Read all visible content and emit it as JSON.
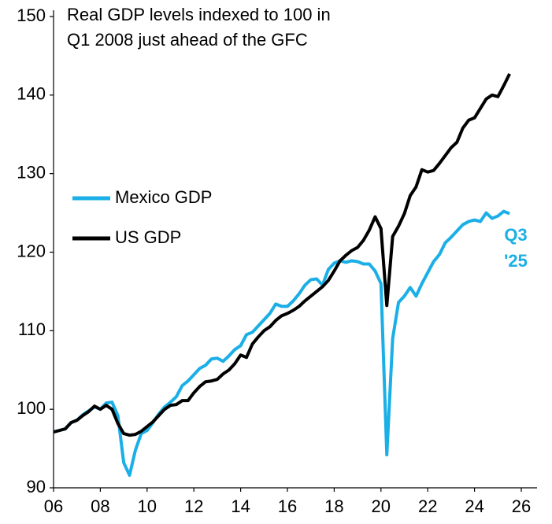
{
  "chart_data": {
    "type": "line",
    "title": [
      "Real GDP levels indexed to 100 in",
      "Q1 2008 just ahead of the GFC"
    ],
    "annotation": {
      "text": [
        "Q3",
        "'25"
      ],
      "color": "#1aafe6"
    },
    "x": [
      2006,
      2006.25,
      2006.5,
      2006.75,
      2007,
      2007.25,
      2007.5,
      2007.75,
      2008,
      2008.25,
      2008.5,
      2008.75,
      2009,
      2009.25,
      2009.5,
      2009.75,
      2010,
      2010.25,
      2010.5,
      2010.75,
      2011,
      2011.25,
      2011.5,
      2011.75,
      2012,
      2012.25,
      2012.5,
      2012.75,
      2013,
      2013.25,
      2013.5,
      2013.75,
      2014,
      2014.25,
      2014.5,
      2014.75,
      2015,
      2015.25,
      2015.5,
      2015.75,
      2016,
      2016.25,
      2016.5,
      2016.75,
      2017,
      2017.25,
      2017.5,
      2017.75,
      2018,
      2018.25,
      2018.5,
      2018.75,
      2019,
      2019.25,
      2019.5,
      2019.75,
      2020,
      2020.25,
      2020.5,
      2020.75,
      2021,
      2021.25,
      2021.5,
      2021.75,
      2022,
      2022.25,
      2022.5,
      2022.75,
      2023,
      2023.25,
      2023.5,
      2023.75,
      2024,
      2024.25,
      2024.5,
      2024.75,
      2025,
      2025.25,
      2025.5
    ],
    "series": [
      {
        "name": "Mexico GDP",
        "color": "#1aafe6",
        "values": [
          97.1,
          97.3,
          97.5,
          98.3,
          98.6,
          99.3,
          99.8,
          100.3,
          100.0,
          100.8,
          100.9,
          99.2,
          93.2,
          91.6,
          94.8,
          96.9,
          97.3,
          98.3,
          99.4,
          100.3,
          100.9,
          101.6,
          103.0,
          103.6,
          104.4,
          105.2,
          105.6,
          106.4,
          106.5,
          106.1,
          106.8,
          107.6,
          108.1,
          109.5,
          109.8,
          110.6,
          111.4,
          112.2,
          113.4,
          113.1,
          113.1,
          113.8,
          114.7,
          115.8,
          116.5,
          116.6,
          115.8,
          117.8,
          118.6,
          118.9,
          118.7,
          118.9,
          118.8,
          118.5,
          118.5,
          117.6,
          116.0,
          94.2,
          109.0,
          113.6,
          114.4,
          115.5,
          114.4,
          116.0,
          117.4,
          118.8,
          119.7,
          121.2,
          121.9,
          122.7,
          123.5,
          123.9,
          124.1,
          123.9,
          125.0,
          124.3,
          124.6,
          125.2,
          124.9
        ]
      },
      {
        "name": "US GDP",
        "color": "#000000",
        "values": [
          97.1,
          97.3,
          97.5,
          98.3,
          98.6,
          99.2,
          99.7,
          100.4,
          100.0,
          100.5,
          100.0,
          98.2,
          96.9,
          96.7,
          96.8,
          97.2,
          97.8,
          98.4,
          99.2,
          100.0,
          100.5,
          100.6,
          101.1,
          101.1,
          102.1,
          102.9,
          103.5,
          103.6,
          103.8,
          104.5,
          105.0,
          105.8,
          106.9,
          106.6,
          108.3,
          109.2,
          110.0,
          110.5,
          111.3,
          111.9,
          112.2,
          112.6,
          113.1,
          113.8,
          114.4,
          115.0,
          115.6,
          116.4,
          117.6,
          118.9,
          119.6,
          120.2,
          120.6,
          121.5,
          122.8,
          124.5,
          123.0,
          113.2,
          122.0,
          123.3,
          124.9,
          127.2,
          128.3,
          130.5,
          130.2,
          130.4,
          131.3,
          132.3,
          133.3,
          134.0,
          135.8,
          136.8,
          137.1,
          138.3,
          139.5,
          140.0,
          139.8,
          141.2,
          142.7
        ]
      }
    ],
    "xlim": [
      2006,
      2026
    ],
    "xticks": [
      {
        "value": 2006,
        "label": "06"
      },
      {
        "value": 2008,
        "label": "08"
      },
      {
        "value": 2010,
        "label": "10"
      },
      {
        "value": 2012,
        "label": "12"
      },
      {
        "value": 2014,
        "label": "14"
      },
      {
        "value": 2016,
        "label": "16"
      },
      {
        "value": 2018,
        "label": "18"
      },
      {
        "value": 2020,
        "label": "20"
      },
      {
        "value": 2022,
        "label": "22"
      },
      {
        "value": 2024,
        "label": "24"
      },
      {
        "value": 2026,
        "label": "26"
      }
    ],
    "ylim": [
      90,
      150
    ],
    "yticks": [
      90,
      100,
      110,
      120,
      130,
      140,
      150
    ]
  }
}
